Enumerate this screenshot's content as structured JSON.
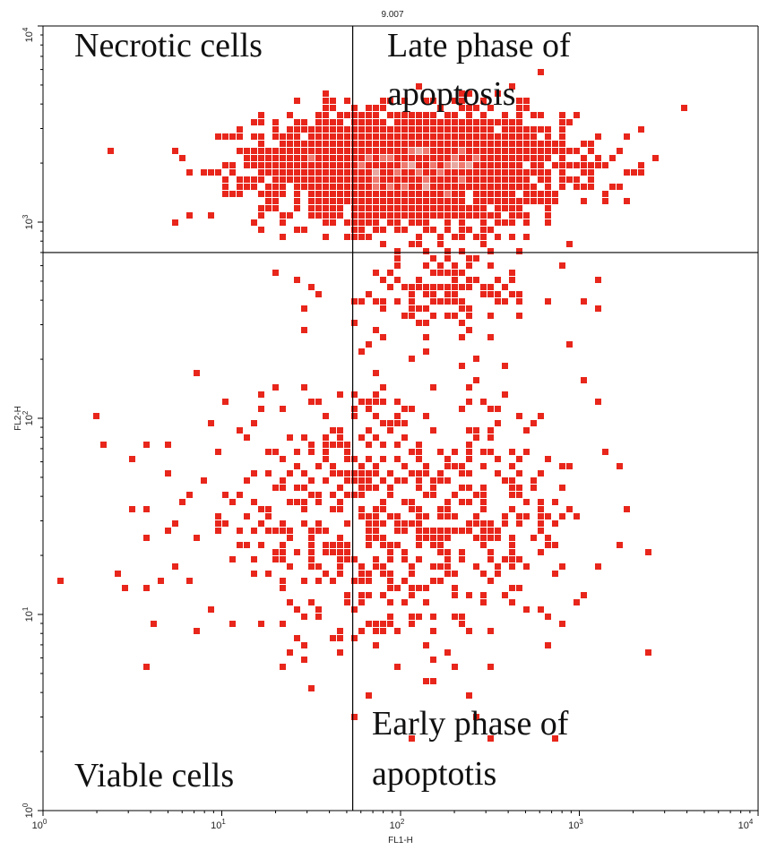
{
  "chart_data": {
    "type": "scatter",
    "xlabel": "FL1-H",
    "ylabel": "FL2-H",
    "x_scale": "log",
    "y_scale": "log",
    "xlim": [
      1,
      10000
    ],
    "ylim": [
      1,
      10000
    ],
    "x_ticks": [
      {
        "base": "10",
        "exp": "0",
        "value": 1
      },
      {
        "base": "10",
        "exp": "1",
        "value": 10
      },
      {
        "base": "10",
        "exp": "2",
        "value": 100
      },
      {
        "base": "10",
        "exp": "3",
        "value": 1000
      },
      {
        "base": "10",
        "exp": "4",
        "value": 10000
      }
    ],
    "y_ticks": [
      {
        "base": "10",
        "exp": "0",
        "value": 1
      },
      {
        "base": "10",
        "exp": "1",
        "value": 10
      },
      {
        "base": "10",
        "exp": "2",
        "value": 100
      },
      {
        "base": "10",
        "exp": "3",
        "value": 1000
      },
      {
        "base": "10",
        "exp": "4",
        "value": 10000
      }
    ],
    "gate": {
      "x": 54,
      "y": 700,
      "label": "9.007"
    },
    "quadrant_labels": {
      "top_left": [
        "Necrotic cells"
      ],
      "top_right": [
        "Late phase of",
        "apoptosis"
      ],
      "bottom_left": [
        "Viable cells"
      ],
      "bottom_right": [
        "Early phase of",
        "apoptotis"
      ]
    },
    "point_color": "#e8261b",
    "highlight_color": "#e8a8a2",
    "grid": false,
    "legend": "none",
    "clusters": [
      {
        "cx": 120,
        "cy": 1900,
        "sx": 0.42,
        "sy": 0.14,
        "n": 2600
      },
      {
        "cx": 180,
        "cy": 450,
        "sx": 0.35,
        "sy": 0.12,
        "n": 130
      },
      {
        "cx": 90,
        "cy": 30,
        "sx": 0.55,
        "sy": 0.32,
        "n": 650
      }
    ],
    "dense_regions": [
      {
        "cx": 28,
        "cy": 1900,
        "sx": 0.18,
        "sy": 0.05
      },
      {
        "cx": 350,
        "cy": 1900,
        "sx": 0.22,
        "sy": 0.05
      }
    ]
  }
}
